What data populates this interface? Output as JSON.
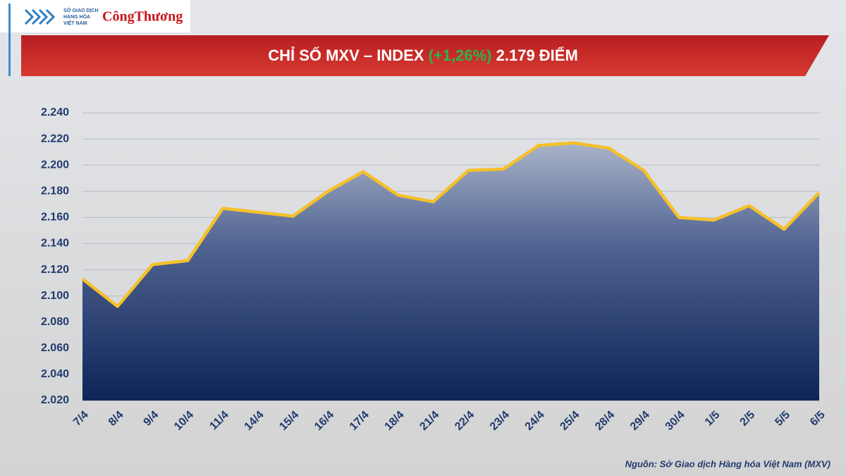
{
  "logo": {
    "exchange_lines": [
      "SỞ GIAO DỊCH",
      "HÀNG HÓA",
      "VIỆT NAM"
    ],
    "newspaper": "CôngThương"
  },
  "chart_data": {
    "type": "area-line",
    "title": "CHỈ SỐ MXV – INDEX",
    "change": "(+1,26%)",
    "headline_value": "2.179 ĐIỂM",
    "source": "Nguồn: Sở Giao dịch Hàng hóa Việt Nam (MXV)",
    "categories": [
      "7/4",
      "8/4",
      "9/4",
      "10/4",
      "11/4",
      "14/4",
      "15/4",
      "16/4",
      "17/4",
      "18/4",
      "21/4",
      "22/4",
      "23/4",
      "24/4",
      "25/4",
      "28/4",
      "29/4",
      "30/4",
      "1/5",
      "2/5",
      "5/5",
      "6/5"
    ],
    "values": [
      2113,
      2092,
      2124,
      2127,
      2167,
      2164,
      2161,
      2180,
      2195,
      2177,
      2172,
      2196,
      2197,
      2215,
      2217,
      2213,
      2196,
      2160,
      2158,
      2169,
      2151,
      2179
    ],
    "color": "#f5c02a",
    "change_color": "#2db34a",
    "ylim": [
      2020,
      2240
    ],
    "yticks": [
      {
        "value": 2020,
        "label": "2.020"
      },
      {
        "value": 2040,
        "label": "2.040"
      },
      {
        "value": 2060,
        "label": "2.060"
      },
      {
        "value": 2080,
        "label": "2.080"
      },
      {
        "value": 2100,
        "label": "2.100"
      },
      {
        "value": 2120,
        "label": "2.120"
      },
      {
        "value": 2140,
        "label": "2.140"
      },
      {
        "value": 2160,
        "label": "2.160"
      },
      {
        "value": 2180,
        "label": "2.180"
      },
      {
        "value": 2200,
        "label": "2.200"
      },
      {
        "value": 2220,
        "label": "2.220"
      },
      {
        "value": 2240,
        "label": "2.240"
      }
    ],
    "grid": true
  }
}
